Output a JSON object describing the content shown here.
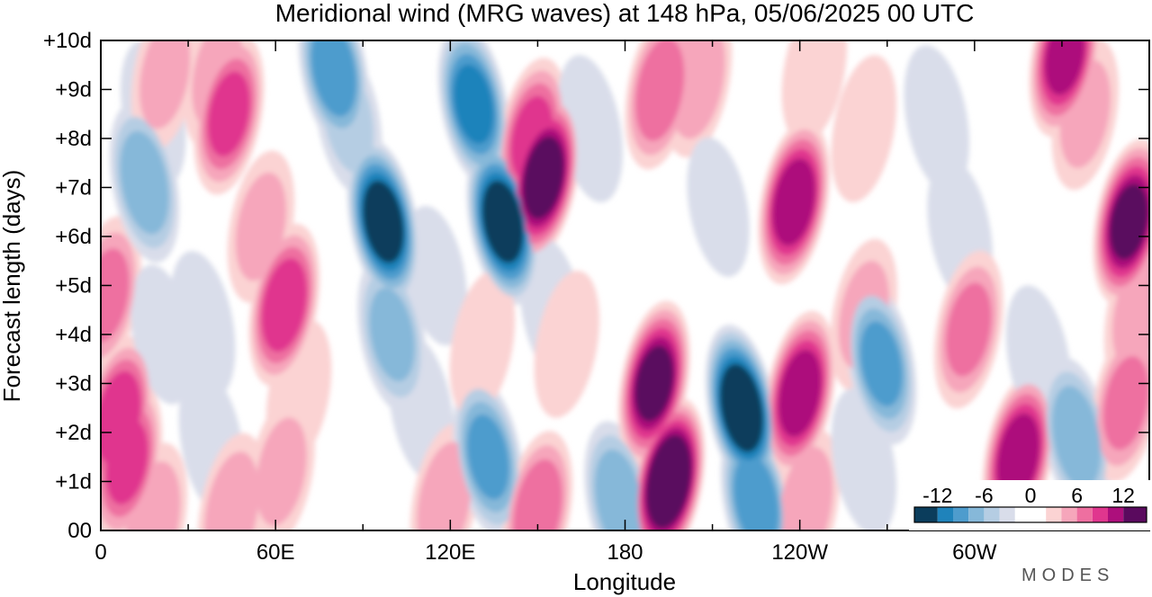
{
  "chart_data": {
    "type": "heatmap",
    "title": "Meridional wind (MRG waves) at  148 hPa,  05/06/2025  00 UTC",
    "xlabel": "Longitude",
    "ylabel": "Forecast length (days)",
    "x_ticks": [
      "0",
      "60E",
      "120E",
      "180",
      "120W",
      "60W"
    ],
    "x_tick_values_deg": [
      0,
      60,
      120,
      180,
      240,
      300
    ],
    "x_range_deg": [
      0,
      360
    ],
    "y_ticks": [
      "00",
      "+1d",
      "+2d",
      "+3d",
      "+4d",
      "+5d",
      "+6d",
      "+7d",
      "+8d",
      "+9d",
      "+10d"
    ],
    "y_range_days": [
      0,
      10
    ],
    "colorbar": {
      "tick_labels": [
        "-12",
        "-6",
        "0",
        "6",
        "12"
      ],
      "tick_values": [
        -12,
        -6,
        0,
        6,
        12
      ],
      "range": [
        -15,
        15
      ],
      "levels": [
        -15,
        -12,
        -10,
        -8,
        -6,
        -4,
        -2,
        2,
        4,
        6,
        8,
        10,
        12,
        15
      ],
      "colors": [
        "#0b3d5c",
        "#11638f",
        "#1f83bb",
        "#4e9ccd",
        "#86b8d9",
        "#b5cde3",
        "#d9ddea",
        "#ffffff",
        "#fbd3d3",
        "#f6a6bb",
        "#ee6fa0",
        "#e0368e",
        "#ad0f7c",
        "#5a0a5e"
      ]
    },
    "features": [
      {
        "lon": 2,
        "day": 4.8,
        "value": 6
      },
      {
        "lon": 6,
        "day": 2.3,
        "value": 9
      },
      {
        "lon": 9,
        "day": 1.4,
        "value": 8
      },
      {
        "lon": 18,
        "day": 0.2,
        "value": 5
      },
      {
        "lon": 18,
        "day": 8.5,
        "value": -3
      },
      {
        "lon": 15,
        "day": 7.1,
        "value": -7
      },
      {
        "lon": 21,
        "day": 4.0,
        "value": -2
      },
      {
        "lon": 22,
        "day": 9.3,
        "value": 4
      },
      {
        "lon": 35,
        "day": 4.2,
        "value": -3
      },
      {
        "lon": 38,
        "day": 1.8,
        "value": -3
      },
      {
        "lon": 40,
        "day": 9.3,
        "value": 4
      },
      {
        "lon": 44,
        "day": 8.5,
        "value": 8
      },
      {
        "lon": 45,
        "day": 0.4,
        "value": 5
      },
      {
        "lon": 55,
        "day": 6.2,
        "value": 4
      },
      {
        "lon": 63,
        "day": 4.6,
        "value": 9
      },
      {
        "lon": 62,
        "day": 1.2,
        "value": 4
      },
      {
        "lon": 68,
        "day": 2.8,
        "value": 3
      },
      {
        "lon": 80,
        "day": 9.4,
        "value": -9
      },
      {
        "lon": 85,
        "day": 8.4,
        "value": -4
      },
      {
        "lon": 97,
        "day": 6.3,
        "value": -13
      },
      {
        "lon": 100,
        "day": 4.0,
        "value": -6
      },
      {
        "lon": 110,
        "day": 2.5,
        "value": -3
      },
      {
        "lon": 118,
        "day": 0.6,
        "value": 5
      },
      {
        "lon": 115,
        "day": 5.2,
        "value": -2
      },
      {
        "lon": 128,
        "day": 8.7,
        "value": -10
      },
      {
        "lon": 138,
        "day": 6.3,
        "value": -13
      },
      {
        "lon": 133,
        "day": 1.5,
        "value": -8
      },
      {
        "lon": 131,
        "day": 3.8,
        "value": 3
      },
      {
        "lon": 152,
        "day": 7.2,
        "value": 13
      },
      {
        "lon": 148,
        "day": 8.0,
        "value": 8
      },
      {
        "lon": 155,
        "day": 4.5,
        "value": -3
      },
      {
        "lon": 160,
        "day": 3.8,
        "value": 3
      },
      {
        "lon": 150,
        "day": 0.4,
        "value": 7
      },
      {
        "lon": 168,
        "day": 8.2,
        "value": -3
      },
      {
        "lon": 178,
        "day": 0.6,
        "value": -7
      },
      {
        "lon": 192,
        "day": 9.0,
        "value": 7
      },
      {
        "lon": 195,
        "day": 1.0,
        "value": 15
      },
      {
        "lon": 190,
        "day": 3.0,
        "value": 12
      },
      {
        "lon": 205,
        "day": 9.2,
        "value": 5
      },
      {
        "lon": 212,
        "day": 6.6,
        "value": -2
      },
      {
        "lon": 220,
        "day": 2.5,
        "value": -14
      },
      {
        "lon": 225,
        "day": 0.6,
        "value": -9
      },
      {
        "lon": 238,
        "day": 6.7,
        "value": 11
      },
      {
        "lon": 240,
        "day": 2.8,
        "value": 11
      },
      {
        "lon": 242,
        "day": 0.5,
        "value": 5
      },
      {
        "lon": 245,
        "day": 9.4,
        "value": 3
      },
      {
        "lon": 262,
        "day": 8.2,
        "value": 3
      },
      {
        "lon": 262,
        "day": 4.4,
        "value": 4
      },
      {
        "lon": 268,
        "day": 3.4,
        "value": -8
      },
      {
        "lon": 262,
        "day": 1.4,
        "value": -3
      },
      {
        "lon": 287,
        "day": 8.4,
        "value": -3
      },
      {
        "lon": 295,
        "day": 6.1,
        "value": -3
      },
      {
        "lon": 298,
        "day": 4.1,
        "value": 6
      },
      {
        "lon": 315,
        "day": 1.5,
        "value": 11
      },
      {
        "lon": 322,
        "day": 3.5,
        "value": -3
      },
      {
        "lon": 335,
        "day": 1.9,
        "value": -7
      },
      {
        "lon": 331,
        "day": 9.7,
        "value": 10
      },
      {
        "lon": 338,
        "day": 8.5,
        "value": 4
      },
      {
        "lon": 353,
        "day": 6.3,
        "value": 12
      },
      {
        "lon": 352,
        "day": 2.6,
        "value": 6
      },
      {
        "lon": 356,
        "day": 4.4,
        "value": 4
      }
    ]
  },
  "logo_text": "MODES"
}
